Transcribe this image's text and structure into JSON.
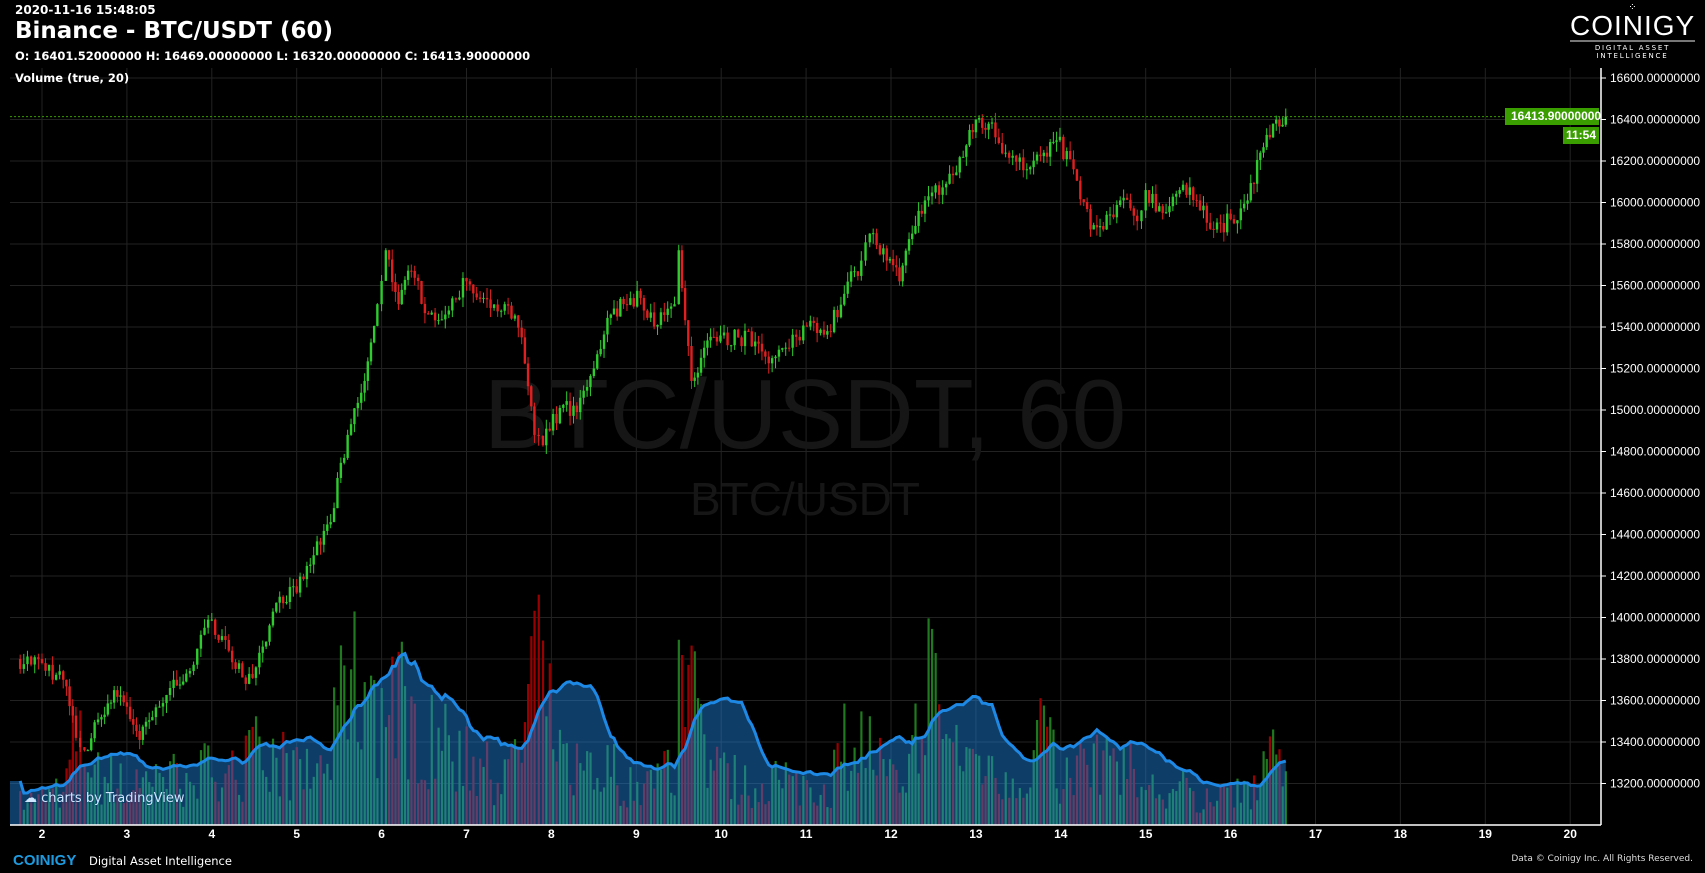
{
  "header": {
    "timestamp": "2020-11-16 15:48:05",
    "title": "Binance - BTC/USDT (60)",
    "ohlc": "O: 16401.52000000 H: 16469.00000000 L: 16320.00000000 C: 16413.90000000",
    "indicator": "Volume (true, 20)"
  },
  "logo": {
    "name": "COINIGY",
    "tagline": "DIGITAL ASSET INTELLIGENCE"
  },
  "watermark": {
    "main": "BTC/USDT, 60",
    "sub": "BTC/USDT"
  },
  "price_axis": {
    "labels": [
      "16600.00000000",
      "16400.00000000",
      "16200.00000000",
      "16000.00000000",
      "15800.00000000",
      "15600.00000000",
      "15400.00000000",
      "15200.00000000",
      "15000.00000000",
      "14800.00000000",
      "14600.00000000",
      "14400.00000000",
      "14200.00000000",
      "14000.00000000",
      "13800.00000000",
      "13600.00000000",
      "13400.00000000",
      "13200.00000000"
    ],
    "last_price": "16413.90000000",
    "countdown": "11:54"
  },
  "time_axis": {
    "labels": [
      "2",
      "3",
      "4",
      "5",
      "6",
      "7",
      "8",
      "9",
      "10",
      "11",
      "12",
      "13",
      "14",
      "15",
      "16",
      "17",
      "18",
      "19",
      "20"
    ]
  },
  "colors": {
    "up": "#2ecc2e",
    "down": "#e02020",
    "last": "#3a9e00",
    "volume_ma": "#1e88e5"
  },
  "footer": {
    "tv": "charts by TradingView",
    "brand": "COINIGY",
    "tagline": "Digital Asset Intelligence",
    "copyright": "Data © Coinigy Inc.  All Rights Reserved."
  },
  "chart_data": {
    "type": "candlestick",
    "x_unit": "day of month (Nov 2020)",
    "columns": [
      "day",
      "close",
      "volume"
    ],
    "points": [
      [
        1.7,
        13800,
        20
      ],
      [
        2.0,
        13780,
        25
      ],
      [
        2.25,
        13700,
        30
      ],
      [
        2.4,
        13420,
        80
      ],
      [
        2.5,
        13360,
        70
      ],
      [
        2.7,
        13520,
        40
      ],
      [
        2.85,
        13650,
        45
      ],
      [
        3.0,
        13570,
        30
      ],
      [
        3.15,
        13410,
        50
      ],
      [
        3.3,
        13520,
        35
      ],
      [
        3.55,
        13700,
        45
      ],
      [
        3.7,
        13730,
        30
      ],
      [
        4.0,
        13990,
        60
      ],
      [
        4.2,
        13840,
        45
      ],
      [
        4.4,
        13680,
        55
      ],
      [
        4.6,
        13860,
        70
      ],
      [
        4.8,
        14100,
        60
      ],
      [
        5.0,
        14120,
        45
      ],
      [
        5.2,
        14300,
        50
      ],
      [
        5.4,
        14460,
        65
      ],
      [
        5.6,
        14880,
        140
      ],
      [
        5.8,
        15140,
        110
      ],
      [
        5.95,
        15510,
        100
      ],
      [
        6.05,
        15770,
        140
      ],
      [
        6.2,
        15510,
        120
      ],
      [
        6.35,
        15670,
        90
      ],
      [
        6.55,
        15460,
        80
      ],
      [
        6.75,
        15460,
        70
      ],
      [
        7.0,
        15620,
        60
      ],
      [
        7.2,
        15540,
        50
      ],
      [
        7.45,
        15510,
        40
      ],
      [
        7.65,
        15350,
        70
      ],
      [
        7.8,
        14880,
        170
      ],
      [
        7.9,
        14830,
        120
      ],
      [
        8.1,
        15010,
        60
      ],
      [
        8.3,
        14990,
        50
      ],
      [
        8.5,
        15200,
        45
      ],
      [
        8.7,
        15460,
        55
      ],
      [
        8.85,
        15510,
        40
      ],
      [
        9.05,
        15540,
        30
      ],
      [
        9.25,
        15410,
        45
      ],
      [
        9.45,
        15510,
        60
      ],
      [
        9.5,
        15770,
        150
      ],
      [
        9.65,
        15140,
        120
      ],
      [
        9.8,
        15300,
        70
      ],
      [
        9.95,
        15330,
        50
      ],
      [
        10.2,
        15350,
        40
      ],
      [
        10.4,
        15330,
        35
      ],
      [
        10.6,
        15250,
        45
      ],
      [
        10.8,
        15300,
        35
      ],
      [
        11.05,
        15430,
        40
      ],
      [
        11.25,
        15380,
        30
      ],
      [
        11.45,
        15560,
        75
      ],
      [
        11.65,
        15720,
        80
      ],
      [
        11.75,
        15850,
        70
      ],
      [
        11.95,
        15720,
        45
      ],
      [
        12.1,
        15620,
        40
      ],
      [
        12.25,
        15850,
        60
      ],
      [
        12.4,
        16010,
        150
      ],
      [
        12.65,
        16090,
        80
      ],
      [
        12.85,
        16220,
        70
      ],
      [
        13.0,
        16400,
        60
      ],
      [
        13.15,
        16380,
        55
      ],
      [
        13.35,
        16240,
        50
      ],
      [
        13.6,
        16160,
        45
      ],
      [
        13.8,
        16240,
        90
      ],
      [
        13.95,
        16300,
        45
      ],
      [
        14.15,
        16160,
        40
      ],
      [
        14.35,
        15870,
        80
      ],
      [
        14.5,
        15870,
        55
      ],
      [
        14.7,
        16010,
        65
      ],
      [
        14.9,
        15910,
        40
      ],
      [
        15.0,
        16060,
        35
      ],
      [
        15.2,
        15950,
        30
      ],
      [
        15.4,
        16060,
        35
      ],
      [
        15.6,
        16010,
        25
      ],
      [
        15.8,
        15870,
        30
      ],
      [
        16.0,
        15920,
        25
      ],
      [
        16.2,
        16010,
        30
      ],
      [
        16.35,
        16240,
        50
      ],
      [
        16.5,
        16380,
        55
      ],
      [
        16.65,
        16413.9,
        40
      ]
    ],
    "ylim": [
      13100,
      16650
    ],
    "xlim": [
      1.65,
      20.35
    ],
    "volume_ma_period": 20,
    "grid": true
  }
}
